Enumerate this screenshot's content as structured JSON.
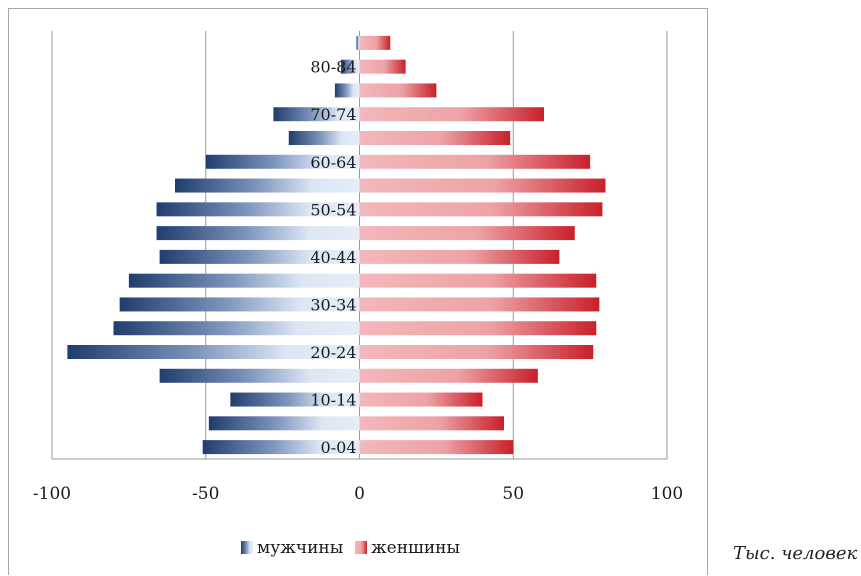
{
  "chart_data": {
    "type": "bar",
    "orientation": "horizontal",
    "subtype": "population-pyramid",
    "categories": [
      "0-04",
      "05-09",
      "10-14",
      "15-19",
      "20-24",
      "25-29",
      "30-34",
      "35-39",
      "40-44",
      "45-49",
      "50-54",
      "55-59",
      "60-64",
      "65-69",
      "70-74",
      "75-79",
      "80-84",
      "85+"
    ],
    "printed_category_labels": [
      "0-04",
      "",
      "10-14",
      "",
      "20-24",
      "",
      "30-34",
      "",
      "40-44",
      "",
      "50-54",
      "",
      "60-64",
      "",
      "70-74",
      "",
      "80-84",
      ""
    ],
    "series": [
      {
        "name": "мужчины",
        "values": [
          -51,
          -49,
          -42,
          -65,
          -95,
          -80,
          -78,
          -75,
          -65,
          -66,
          -66,
          -60,
          -50,
          -23,
          -28,
          -8,
          -6,
          -1
        ],
        "color": "#1f3d6e",
        "fade_color": "#dce6f4"
      },
      {
        "name": "женшины",
        "values": [
          50,
          47,
          40,
          58,
          76,
          77,
          78,
          77,
          65,
          70,
          79,
          80,
          75,
          49,
          60,
          25,
          15,
          10
        ],
        "color": "#c8202a",
        "fade_color": "#f2b8bb"
      }
    ],
    "xlim": [
      -100,
      100
    ],
    "xticks": [
      -100,
      -50,
      0,
      50,
      100
    ],
    "xtick_labels": [
      "-100",
      "-50",
      "0",
      "50",
      "100"
    ],
    "grid": true,
    "legend_position": "bottom"
  },
  "unit_caption": "Тыс. человек"
}
